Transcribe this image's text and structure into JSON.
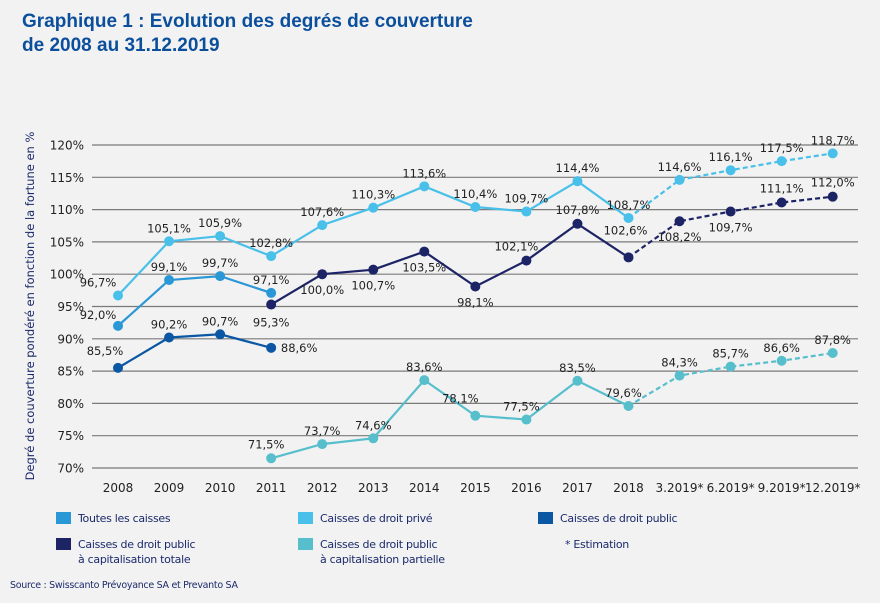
{
  "title_line1": "Graphique 1 : Evolution des degrés de couverture",
  "title_line2": "de 2008 au 31.12.2019",
  "source": "Source : Swisscanto Prévoyance SA et Prevanto SA",
  "estimation_note": "* Estimation",
  "chart_data": {
    "type": "line",
    "title": "Graphique 1 : Evolution des degrés de couverture de 2008 au 31.12.2019",
    "xlabel": "",
    "ylabel": "Degré de couverture pondéré en fonction de la fortune en %",
    "ylim": [
      70,
      120
    ],
    "yticks": [
      120,
      115,
      110,
      105,
      100,
      95,
      90,
      85,
      80,
      75,
      70
    ],
    "ytick_labels": [
      "120%",
      "115%",
      "110%",
      "105%",
      "100%",
      "95%",
      "90%",
      "85%",
      "80%",
      "75%",
      "70%"
    ],
    "grid": true,
    "legend_position": "bottom",
    "categories": [
      "2008",
      "2009",
      "2010",
      "2011",
      "2012",
      "2013",
      "2014",
      "2015",
      "2016",
      "2017",
      "2018",
      "3.2019*",
      "6.2019*",
      "9.2019*",
      "12.2019*"
    ],
    "estimated_from_index": 10,
    "series": [
      {
        "name": "Toutes les caisses",
        "color": "#2a97d6",
        "values": [
          92.0,
          99.1,
          99.7,
          97.1,
          null,
          null,
          null,
          null,
          null,
          null,
          null,
          null,
          null,
          null,
          null
        ],
        "labels": [
          "92,0%",
          "99,1%",
          "99,7%",
          "97,1%",
          null,
          null,
          null,
          null,
          null,
          null,
          null,
          null,
          null,
          null,
          null
        ]
      },
      {
        "name": "Caisses de droit privé",
        "color": "#49c0ea",
        "values": [
          96.7,
          105.1,
          105.9,
          102.8,
          107.6,
          110.3,
          113.6,
          110.4,
          109.7,
          114.4,
          108.7,
          114.6,
          116.1,
          117.5,
          118.7
        ],
        "labels": [
          "96,7%",
          "105,1%",
          "105,9%",
          "102,8%",
          "107,6%",
          "110,3%",
          "113,6%",
          "110,4%",
          "109,7%",
          "114,4%",
          "108,7%",
          "114,6%",
          "116,1%",
          "117,5%",
          "118,7%"
        ]
      },
      {
        "name": "Caisses de droit public",
        "color": "#0b57a4",
        "values": [
          85.5,
          90.2,
          90.7,
          88.6,
          null,
          null,
          null,
          null,
          null,
          null,
          null,
          null,
          null,
          null,
          null
        ],
        "labels": [
          "85,5%",
          "90,2%",
          "90,7%",
          "88,6%",
          null,
          null,
          null,
          null,
          null,
          null,
          null,
          null,
          null,
          null,
          null
        ]
      },
      {
        "name": "Caisses de droit public à capitalisation totale",
        "color": "#1c2466",
        "values": [
          null,
          null,
          null,
          95.3,
          100.0,
          100.7,
          103.5,
          98.1,
          102.1,
          107.8,
          102.6,
          108.2,
          109.7,
          111.1,
          112.0
        ],
        "labels": [
          null,
          null,
          null,
          "95,3%",
          "100,0%",
          "100,7%",
          "103,5%",
          "98,1%",
          "102,1%",
          "107,8%",
          "102,6%",
          "108,2%",
          "109,7%",
          "111,1%",
          "112,0%"
        ]
      },
      {
        "name": "Caisses de droit public à capitalisation partielle",
        "color": "#57bfcc",
        "values": [
          null,
          null,
          null,
          71.5,
          73.7,
          74.6,
          83.6,
          78.1,
          77.5,
          83.5,
          79.6,
          84.3,
          85.7,
          86.6,
          87.8
        ],
        "labels": [
          null,
          null,
          null,
          "71,5%",
          "73,7%",
          "74,6%",
          "83,6%",
          "78,1%",
          "77,5%",
          "83,5%",
          "79,6%",
          "84,3%",
          "85,7%",
          "86,6%",
          "87,8%"
        ]
      }
    ]
  },
  "legend": [
    {
      "label": "Toutes les caisses",
      "color": "#2a97d6"
    },
    {
      "label": "Caisses de droit privé",
      "color": "#49c0ea"
    },
    {
      "label": "Caisses de droit public",
      "color": "#0b57a4"
    },
    {
      "label": "Caisses de droit public\nà capitalisation totale",
      "color": "#1c2466"
    },
    {
      "label": "Caisses de droit public\nà capitalisation partielle",
      "color": "#57bfcc"
    }
  ]
}
